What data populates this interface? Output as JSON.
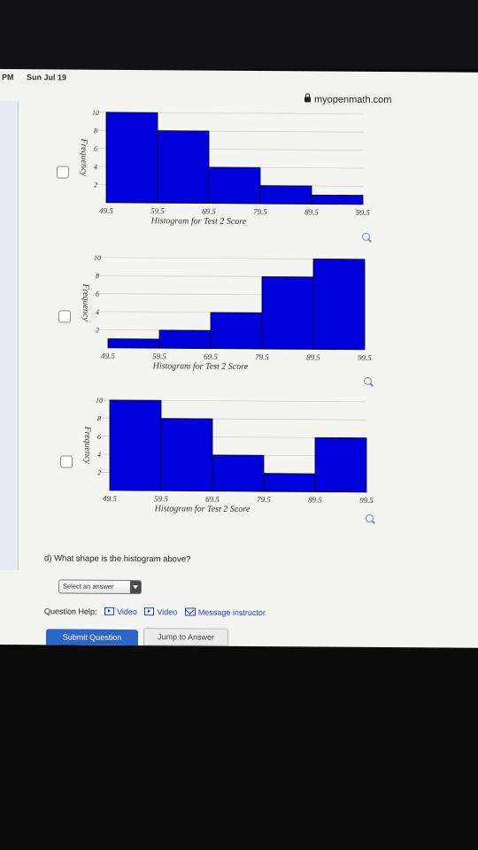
{
  "status": {
    "time": "PM",
    "date": "Sun Jul 19"
  },
  "browser": {
    "url": "myopenmath.com"
  },
  "histograms": [
    {
      "ylabel": "Frequency",
      "title": "Histogram for Test 2 Score",
      "x_ticks": [
        "49.5",
        "59.5",
        "69.5",
        "79.5",
        "89.5",
        "99.5"
      ],
      "y_ticks": [
        "2",
        "4",
        "6",
        "8",
        "10"
      ],
      "values": [
        10,
        8,
        4,
        2,
        1
      ]
    },
    {
      "ylabel": "Frequency",
      "title": "Histogram for Test 2 Score",
      "x_ticks": [
        "49.5",
        "59.5",
        "69.5",
        "79.5",
        "89.5",
        "99.5"
      ],
      "y_ticks": [
        "2",
        "4",
        "6",
        "8",
        "10"
      ],
      "values": [
        1,
        2,
        4,
        8,
        10
      ]
    },
    {
      "ylabel": "Frequency",
      "title": "Histogram for Test 2 Score",
      "x_ticks": [
        "49.5",
        "59.5",
        "69.5",
        "79.5",
        "89.5",
        "99.5"
      ],
      "y_ticks": [
        "2",
        "4",
        "6",
        "8",
        "10"
      ],
      "values": [
        10,
        8,
        4,
        2,
        6
      ]
    }
  ],
  "chart_data": [
    {
      "type": "bar",
      "title": "Histogram for Test 2 Score",
      "ylabel": "Frequency",
      "categories": [
        "49.5-59.5",
        "59.5-69.5",
        "69.5-79.5",
        "79.5-89.5",
        "89.5-99.5"
      ],
      "values": [
        10,
        8,
        4,
        2,
        1
      ],
      "ylim": [
        0,
        10
      ],
      "bar_color": "#0000dd"
    },
    {
      "type": "bar",
      "title": "Histogram for Test 2 Score",
      "ylabel": "Frequency",
      "categories": [
        "49.5-59.5",
        "59.5-69.5",
        "69.5-79.5",
        "79.5-89.5",
        "89.5-99.5"
      ],
      "values": [
        1,
        2,
        4,
        8,
        10
      ],
      "ylim": [
        0,
        10
      ],
      "bar_color": "#0000dd"
    },
    {
      "type": "bar",
      "title": "Histogram for Test 2 Score",
      "ylabel": "Frequency",
      "categories": [
        "49.5-59.5",
        "59.5-69.5",
        "69.5-79.5",
        "79.5-89.5",
        "89.5-99.5"
      ],
      "values": [
        10,
        8,
        4,
        2,
        6
      ],
      "ylim": [
        0,
        10
      ],
      "bar_color": "#0000dd"
    }
  ],
  "question": {
    "text": "d) What shape is the histogram above?",
    "select_label": "Select an answer"
  },
  "help": {
    "label": "Question Help:",
    "video1": "Video",
    "video2": "Video",
    "message": "Message instructor"
  },
  "buttons": {
    "submit": "Submit Question",
    "jump": "Jump to Answer"
  },
  "colors": {
    "bar": "#0000dd",
    "link": "#2544b8",
    "submit": "#2b65c8"
  }
}
